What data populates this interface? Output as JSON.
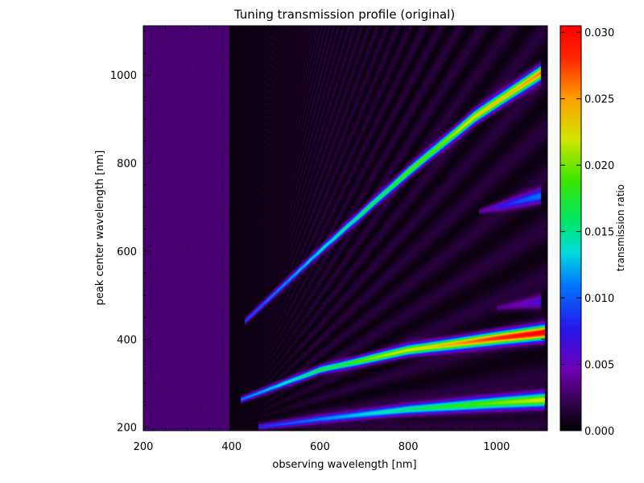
{
  "chart_data": {
    "type": "heatmap",
    "title": "Tuning transmission profile (original)",
    "xlabel": "observing wavelength [nm]",
    "ylabel": "peak center wavelength [nm]",
    "xlim": [
      200,
      1115
    ],
    "ylim": [
      192,
      1112
    ],
    "x_ticks": [
      "200",
      "400",
      "600",
      "800",
      "1000"
    ],
    "y_ticks": [
      "200",
      "400",
      "600",
      "800",
      "1000"
    ],
    "colorbar": {
      "label": "transmission ratio",
      "range": [
        0.0,
        0.0305
      ],
      "ticks": [
        "0.000",
        "0.005",
        "0.010",
        "0.015",
        "0.020",
        "0.025",
        "0.030"
      ],
      "colormap": "rainbow-black-purple-blue-green-yellow-red"
    },
    "background_level": {
      "below_400nm_observing": 0.003,
      "above_400nm_observing": 0.0004
    },
    "features": [
      {
        "name": "main diagonal ridge",
        "points": [
          [
            430,
            440
          ],
          [
            600,
            600
          ],
          [
            800,
            780
          ],
          [
            950,
            905
          ],
          [
            1100,
            1005
          ]
        ],
        "peak_value": 0.025
      },
      {
        "name": "upper side lobe",
        "points": [
          [
            960,
            690
          ],
          [
            1100,
            725
          ]
        ],
        "peak_value": 0.01
      },
      {
        "name": "lower side lobe",
        "points": [
          [
            1000,
            470
          ],
          [
            1100,
            485
          ]
        ],
        "peak_value": 0.006
      },
      {
        "name": "second-order ridge",
        "points": [
          [
            420,
            262
          ],
          [
            600,
            330
          ],
          [
            800,
            375
          ],
          [
            1000,
            402
          ],
          [
            1110,
            415
          ]
        ],
        "peak_value": 0.03
      },
      {
        "name": "third-order ridge",
        "points": [
          [
            460,
            200
          ],
          [
            600,
            218
          ],
          [
            800,
            240
          ],
          [
            1000,
            255
          ],
          [
            1110,
            262
          ]
        ],
        "peak_value": 0.022
      }
    ]
  }
}
